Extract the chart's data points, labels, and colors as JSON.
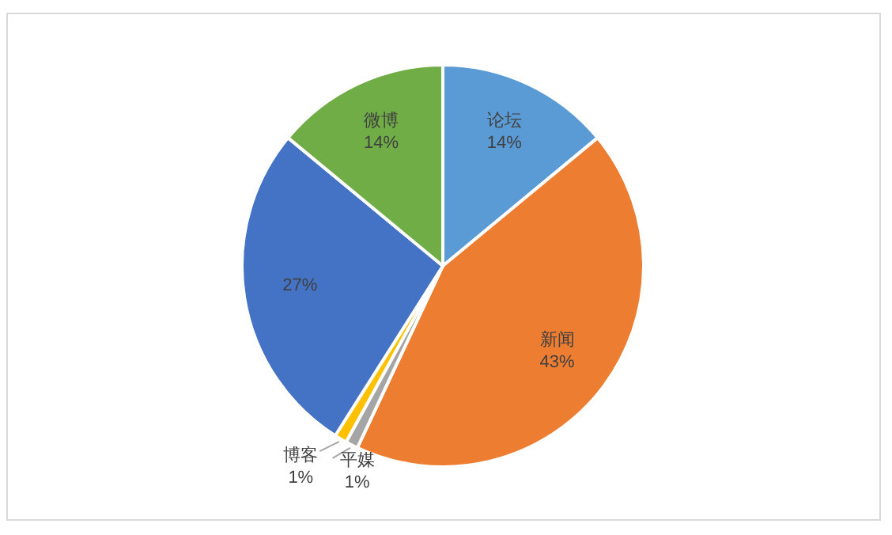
{
  "chart_data": {
    "type": "pie",
    "categories": [
      "论坛",
      "新闻",
      "平媒",
      "博客",
      null,
      "微博"
    ],
    "values": [
      14,
      43,
      1,
      1,
      27,
      14
    ],
    "colors": [
      "#5b9bd5",
      "#ed7d31",
      "#a5a5a5",
      "#ffc000",
      "#4472c4",
      "#70ad47"
    ],
    "value_labels": [
      "14%",
      "43%",
      "1%",
      "1%",
      "27%",
      "14%"
    ]
  }
}
